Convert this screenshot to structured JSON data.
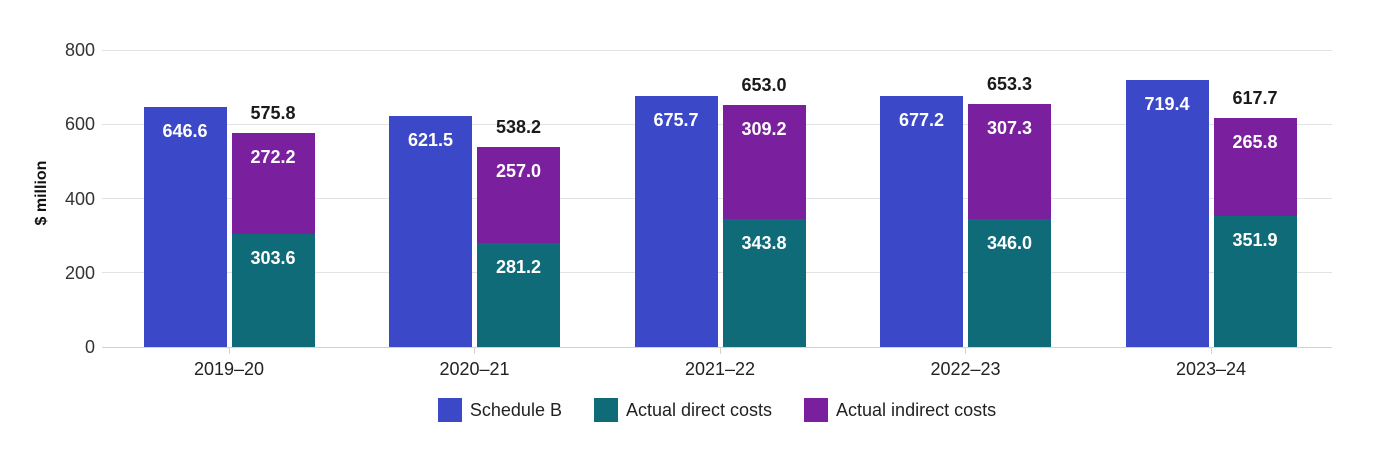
{
  "chart_data": {
    "type": "bar",
    "title": "",
    "xlabel": "",
    "ylabel": "$ million",
    "categories": [
      "2019–20",
      "2020–21",
      "2021–22",
      "2022–23",
      "2023–24"
    ],
    "series": [
      {
        "name": "Schedule B",
        "color": "#3B48C7",
        "role": "standalone-bar",
        "values": [
          646.6,
          621.5,
          675.7,
          677.2,
          719.4
        ],
        "value_labels": [
          "646.6",
          "621.5",
          "675.7",
          "677.2",
          "719.4"
        ]
      },
      {
        "name": "Actual direct costs",
        "color": "#0F6B77",
        "role": "stacked-bar-bottom",
        "values": [
          303.6,
          281.2,
          343.8,
          346.0,
          351.9
        ],
        "value_labels": [
          "303.6",
          "281.2",
          "343.8",
          "346.0",
          "351.9"
        ]
      },
      {
        "name": "Actual indirect costs",
        "color": "#7A1F9E",
        "role": "stacked-bar-top",
        "values": [
          272.2,
          257.0,
          309.2,
          307.3,
          265.8
        ],
        "value_labels": [
          "272.2",
          "257.0",
          "309.2",
          "307.3",
          "265.8"
        ]
      }
    ],
    "stacked_bar_totals": [
      575.8,
      538.2,
      653.0,
      653.3,
      617.7
    ],
    "stacked_bar_total_labels": [
      "575.8",
      "538.2",
      "653.0",
      "653.3",
      "617.7"
    ],
    "y_ticks": [
      0,
      200,
      400,
      600,
      800
    ],
    "ylim": [
      0,
      800
    ],
    "grid": true,
    "legend_position": "bottom",
    "value_label_color_inside_bars": "#FFFFFF",
    "value_label_color_totals": "#1A1A1A"
  }
}
